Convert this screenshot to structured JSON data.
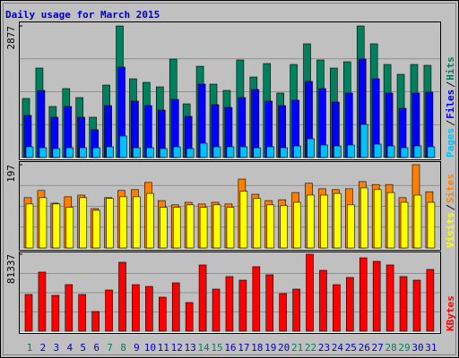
{
  "chart_data": [
    {
      "type": "bar",
      "title": "Daily usage for March 2015",
      "title_color": "#0000c0",
      "ylim": [
        0,
        2877
      ],
      "yticks": [
        2877
      ],
      "series": [
        {
          "name": "Hits",
          "color": "#00805c",
          "values": [
            1292,
            1957,
            1116,
            1507,
            1311,
            881,
            1585,
            2877,
            1722,
            1644,
            1546,
            2153,
            1174,
            1996,
            1605,
            1468,
            2133,
            1761,
            2055,
            1409,
            2035,
            2486,
            2133,
            1957,
            2094,
            2877,
            2486,
            2035,
            1820,
            2035,
            2016
          ]
        },
        {
          "name": "Files",
          "color": "#0000ff",
          "values": [
            920,
            1468,
            881,
            1116,
            881,
            607,
            1135,
            1977,
            1233,
            1135,
            1037,
            1272,
            900,
            1605,
            1155,
            1096,
            1311,
            1487,
            1233,
            1135,
            1253,
            1664,
            1507,
            1213,
            1409,
            2153,
            1722,
            1409,
            1076,
            1409,
            1429
          ]
        },
        {
          "name": "Pages",
          "color": "#00c0ff",
          "values": [
            235,
            215,
            196,
            215,
            215,
            215,
            235,
            470,
            215,
            215,
            196,
            235,
            196,
            313,
            235,
            235,
            235,
            215,
            235,
            215,
            254,
            411,
            274,
            254,
            274,
            724,
            294,
            254,
            215,
            254,
            235
          ]
        }
      ]
    },
    {
      "type": "bar",
      "ylim": [
        0,
        197
      ],
      "yticks": [
        197
      ],
      "series": [
        {
          "name": "Sites",
          "color": "#ff8000",
          "values": [
            119,
            136,
            106,
            121,
            125,
            93,
            119,
            136,
            138,
            155,
            112,
            102,
            108,
            104,
            108,
            104,
            163,
            127,
            112,
            114,
            131,
            153,
            140,
            138,
            140,
            157,
            150,
            150,
            119,
            197,
            133
          ]
        },
        {
          "name": "Visits",
          "color": "#ffff00",
          "values": [
            104,
            119,
            104,
            96,
            119,
            89,
            117,
            121,
            121,
            129,
            96,
            96,
            102,
            96,
            102,
            96,
            134,
            117,
            102,
            100,
            108,
            125,
            125,
            129,
            102,
            142,
            138,
            131,
            108,
            125,
            108
          ]
        }
      ]
    },
    {
      "type": "bar",
      "ylim": [
        0,
        81337
      ],
      "yticks": [
        81337
      ],
      "categories": [
        "1",
        "2",
        "3",
        "4",
        "5",
        "6",
        "7",
        "8",
        "9",
        "10",
        "11",
        "12",
        "13",
        "14",
        "15",
        "16",
        "17",
        "18",
        "19",
        "20",
        "21",
        "22",
        "23",
        "24",
        "25",
        "26",
        "27",
        "28",
        "29",
        "30",
        "31"
      ],
      "category_colors": [
        "#00805c",
        "#0000c0",
        "#0000c0",
        "#0000c0",
        "#0000c0",
        "#0000c0",
        "#00805c",
        "#00805c",
        "#0000c0",
        "#0000c0",
        "#0000c0",
        "#0000c0",
        "#0000c0",
        "#00805c",
        "#00805c",
        "#0000c0",
        "#0000c0",
        "#0000c0",
        "#0000c0",
        "#0000c0",
        "#00805c",
        "#00805c",
        "#0000c0",
        "#0000c0",
        "#0000c0",
        "#0000c0",
        "#0000c0",
        "#00805c",
        "#00805c",
        "#0000c0",
        "#0000c0"
      ],
      "series": [
        {
          "name": "KBytes",
          "color": "#ff0000",
          "values": [
            38777,
            62421,
            37831,
            49181,
            38777,
            20807,
            43507,
            72825,
            49181,
            47289,
            35940,
            51073,
            30265,
            69988,
            44453,
            57692,
            53909,
            68096,
            59584,
            39722,
            44453,
            81337,
            64313,
            49181,
            56747,
            77554,
            73771,
            69988,
            57692,
            53909,
            65259
          ]
        }
      ]
    }
  ]
}
